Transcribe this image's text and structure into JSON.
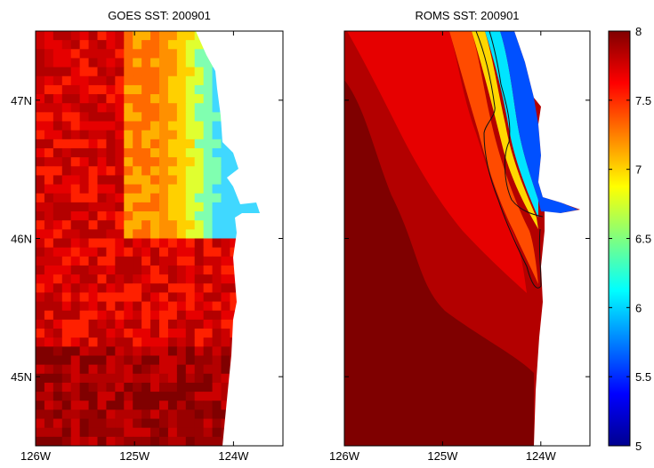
{
  "figure": {
    "panels": [
      {
        "id": "goes",
        "title": "GOES SST: 200901",
        "lon_range": [
          -126,
          -123.5
        ],
        "lat_range": [
          44.5,
          47.5
        ],
        "x_ticks": [
          {
            "value": -126,
            "label": "126W"
          },
          {
            "value": -125,
            "label": "125W"
          },
          {
            "value": -124,
            "label": "124W"
          }
        ],
        "y_ticks": [
          {
            "value": 47,
            "label": "47N"
          },
          {
            "value": 46,
            "label": "46N"
          },
          {
            "value": 45,
            "label": "45N"
          }
        ]
      },
      {
        "id": "roms",
        "title": "ROMS SST: 200901",
        "lon_range": [
          -126,
          -123.5
        ],
        "lat_range": [
          44.5,
          47.5
        ],
        "x_ticks": [
          {
            "value": -126,
            "label": "126W"
          },
          {
            "value": -125,
            "label": "125W"
          },
          {
            "value": -124,
            "label": "124W"
          }
        ],
        "y_ticks": []
      }
    ],
    "colorbar": {
      "min": 5,
      "max": 8,
      "colormap": "jet",
      "ticks": [
        {
          "value": 8,
          "label": "8"
        },
        {
          "value": 7.5,
          "label": "7.5"
        },
        {
          "value": 7,
          "label": "7"
        },
        {
          "value": 6.5,
          "label": "6.5"
        },
        {
          "value": 6,
          "label": "6"
        },
        {
          "value": 5.5,
          "label": "5.5"
        },
        {
          "value": 5,
          "label": "5"
        }
      ]
    },
    "land_color": "#ffffff",
    "contour_color": "#111111"
  }
}
